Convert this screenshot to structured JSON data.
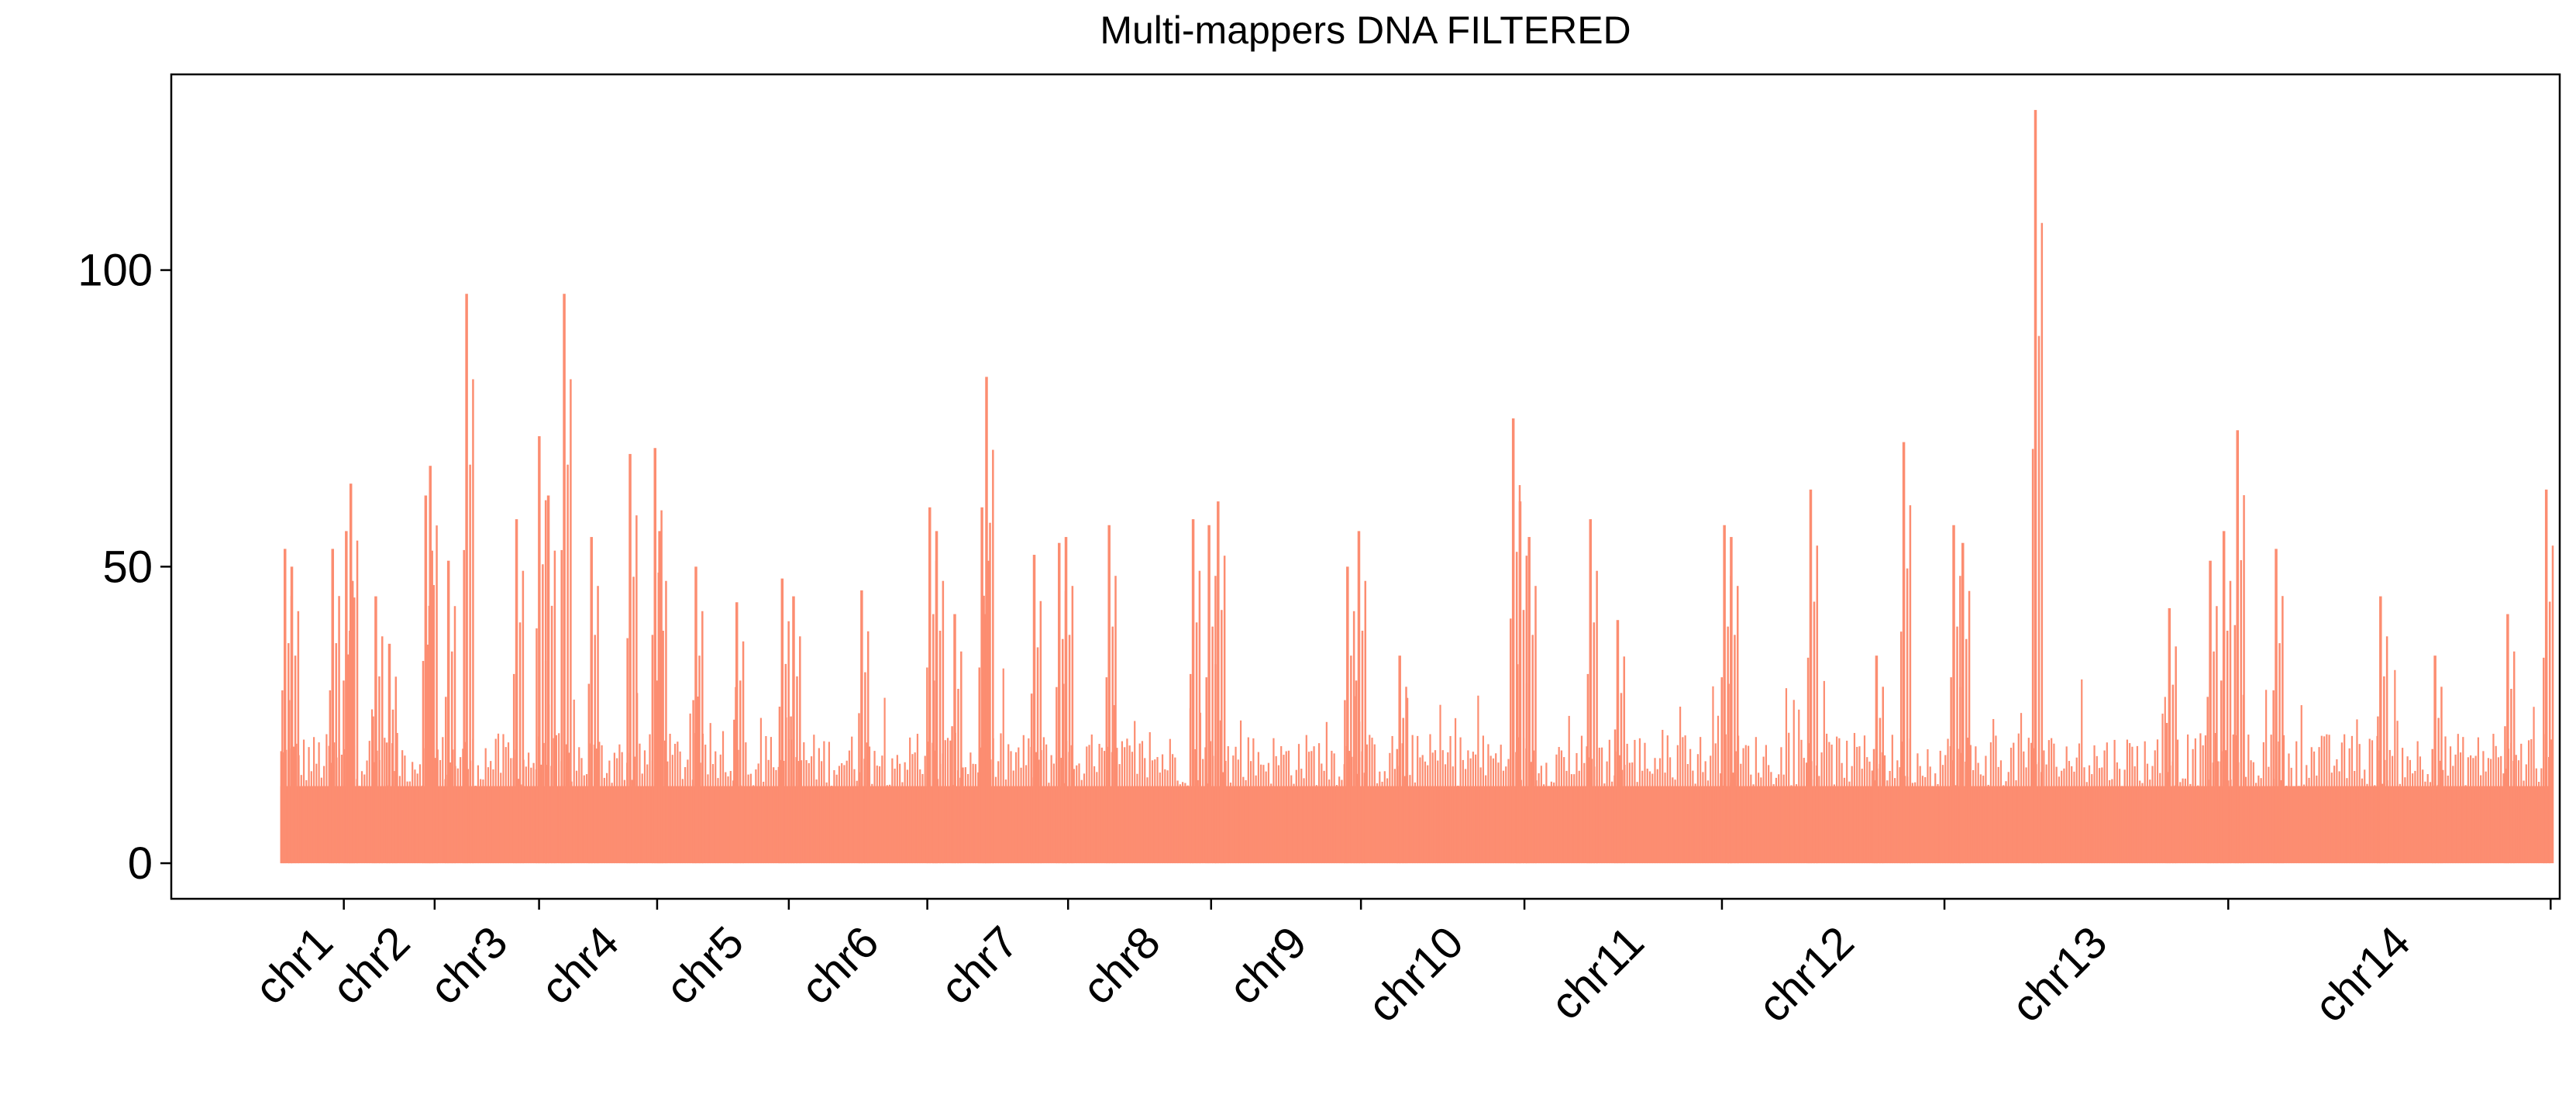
{
  "chart_data": {
    "type": "bar",
    "title": "Multi-mappers DNA FILTERED",
    "xlabel": "",
    "ylabel": "",
    "ylim": [
      -6,
      133
    ],
    "yticks": [
      0,
      50,
      100
    ],
    "grid": false,
    "legend": "none",
    "colors": {
      "bars": "#fc8d71",
      "axis": "#000000",
      "background": "#ffffff"
    },
    "x_range_percent": [
      -4.8,
      100.4
    ],
    "chromosomes": [
      {
        "name": "chr1",
        "start_pct": 0.0,
        "end_pct": 2.8
      },
      {
        "name": "chr2",
        "start_pct": 2.8,
        "end_pct": 6.8
      },
      {
        "name": "chr3",
        "start_pct": 6.8,
        "end_pct": 11.4
      },
      {
        "name": "chr4",
        "start_pct": 11.4,
        "end_pct": 16.6
      },
      {
        "name": "chr5",
        "start_pct": 16.6,
        "end_pct": 22.4
      },
      {
        "name": "chr6",
        "start_pct": 22.4,
        "end_pct": 28.5
      },
      {
        "name": "chr7",
        "start_pct": 28.5,
        "end_pct": 34.7
      },
      {
        "name": "chr8",
        "start_pct": 34.7,
        "end_pct": 41.0
      },
      {
        "name": "chr9",
        "start_pct": 41.0,
        "end_pct": 47.6
      },
      {
        "name": "chr10",
        "start_pct": 47.6,
        "end_pct": 54.8
      },
      {
        "name": "chr11",
        "start_pct": 54.8,
        "end_pct": 63.5
      },
      {
        "name": "chr12",
        "start_pct": 63.5,
        "end_pct": 73.3
      },
      {
        "name": "chr13",
        "start_pct": 73.3,
        "end_pct": 85.8
      },
      {
        "name": "chr14",
        "start_pct": 85.8,
        "end_pct": 100.0
      }
    ],
    "baseline_band": {
      "min": 13,
      "max": 22
    },
    "peaks": [
      {
        "x": 0.2,
        "y": 53
      },
      {
        "x": 0.5,
        "y": 50
      },
      {
        "x": 2.3,
        "y": 53
      },
      {
        "x": 2.9,
        "y": 56
      },
      {
        "x": 3.1,
        "y": 64
      },
      {
        "x": 4.2,
        "y": 45
      },
      {
        "x": 4.8,
        "y": 37
      },
      {
        "x": 6.4,
        "y": 62
      },
      {
        "x": 6.6,
        "y": 67
      },
      {
        "x": 7.4,
        "y": 51
      },
      {
        "x": 8.2,
        "y": 96
      },
      {
        "x": 10.4,
        "y": 58
      },
      {
        "x": 11.4,
        "y": 72
      },
      {
        "x": 11.8,
        "y": 62
      },
      {
        "x": 12.5,
        "y": 96
      },
      {
        "x": 13.7,
        "y": 55
      },
      {
        "x": 15.4,
        "y": 69
      },
      {
        "x": 16.5,
        "y": 70
      },
      {
        "x": 16.7,
        "y": 56
      },
      {
        "x": 18.3,
        "y": 50
      },
      {
        "x": 20.1,
        "y": 44
      },
      {
        "x": 22.1,
        "y": 48
      },
      {
        "x": 22.6,
        "y": 45
      },
      {
        "x": 25.6,
        "y": 46
      },
      {
        "x": 28.6,
        "y": 60
      },
      {
        "x": 28.9,
        "y": 56
      },
      {
        "x": 29.7,
        "y": 42
      },
      {
        "x": 30.9,
        "y": 60
      },
      {
        "x": 31.1,
        "y": 82
      },
      {
        "x": 33.2,
        "y": 52
      },
      {
        "x": 34.3,
        "y": 54
      },
      {
        "x": 34.6,
        "y": 55
      },
      {
        "x": 36.5,
        "y": 57
      },
      {
        "x": 40.2,
        "y": 58
      },
      {
        "x": 40.9,
        "y": 57
      },
      {
        "x": 41.3,
        "y": 61
      },
      {
        "x": 47.0,
        "y": 50
      },
      {
        "x": 47.5,
        "y": 56
      },
      {
        "x": 49.3,
        "y": 35
      },
      {
        "x": 54.3,
        "y": 75
      },
      {
        "x": 54.6,
        "y": 61
      },
      {
        "x": 55.0,
        "y": 55
      },
      {
        "x": 57.7,
        "y": 58
      },
      {
        "x": 58.9,
        "y": 41
      },
      {
        "x": 63.6,
        "y": 57
      },
      {
        "x": 63.9,
        "y": 55
      },
      {
        "x": 67.4,
        "y": 63
      },
      {
        "x": 70.3,
        "y": 35
      },
      {
        "x": 71.5,
        "y": 71
      },
      {
        "x": 73.7,
        "y": 57
      },
      {
        "x": 74.1,
        "y": 54
      },
      {
        "x": 77.3,
        "y": 127
      },
      {
        "x": 83.2,
        "y": 43
      },
      {
        "x": 85.0,
        "y": 51
      },
      {
        "x": 85.6,
        "y": 56
      },
      {
        "x": 86.2,
        "y": 73
      },
      {
        "x": 87.9,
        "y": 53
      },
      {
        "x": 92.5,
        "y": 45
      },
      {
        "x": 94.9,
        "y": 35
      },
      {
        "x": 98.1,
        "y": 42
      },
      {
        "x": 99.8,
        "y": 63
      }
    ]
  }
}
